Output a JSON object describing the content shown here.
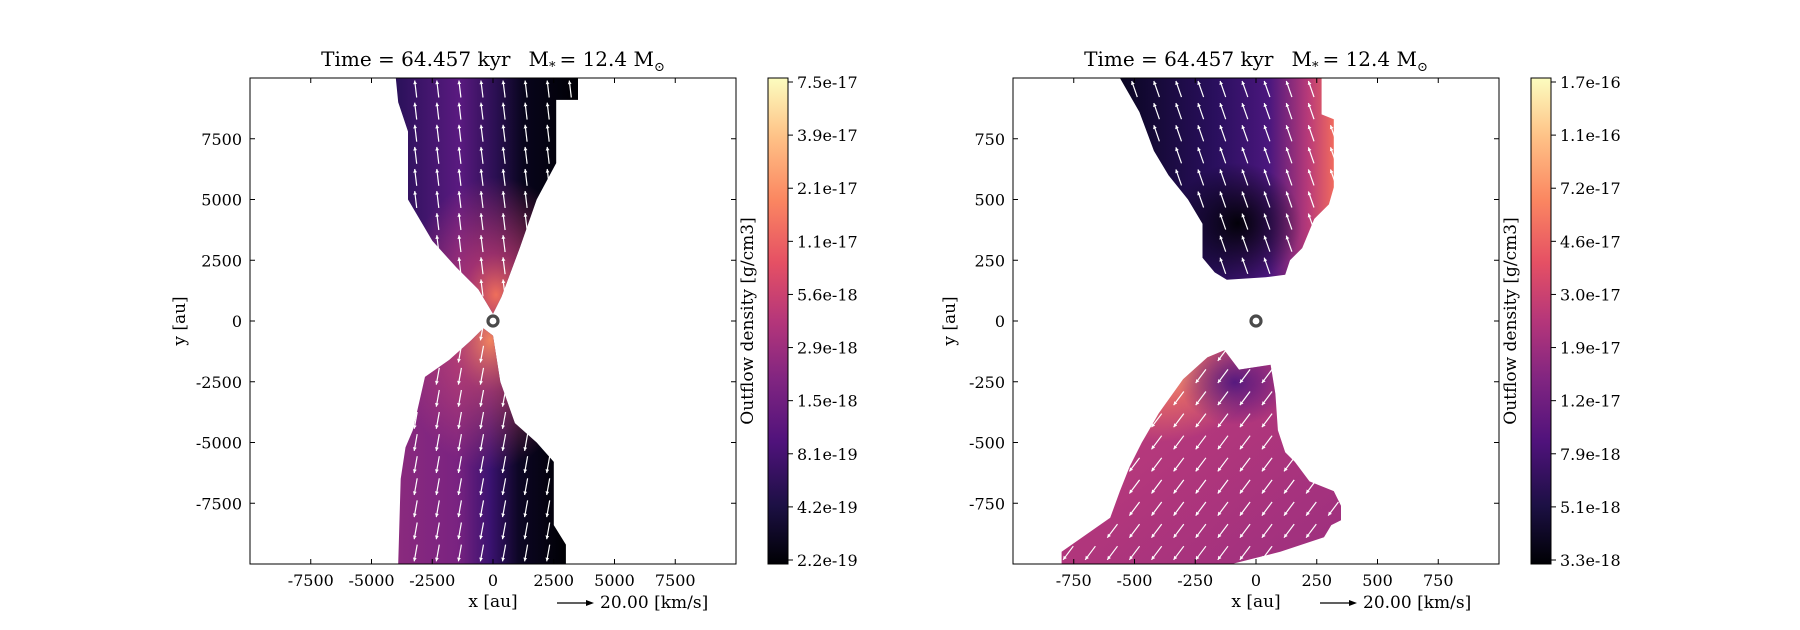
{
  "chart_data": [
    {
      "type": "heatmap",
      "title": "Time = 64.457 kyr    M_* = 12.4 M_⊙",
      "title_parts": {
        "time": "Time = 64.457 kyr",
        "mass_lhs": "M",
        "mass_sub": "*",
        "mass_rhs": "= 12.4 M",
        "mass_unit_sub": "⊙"
      },
      "xlabel": "x [au]",
      "ylabel": "y [au]",
      "xlim": [
        -10000,
        10000
      ],
      "ylim": [
        -10000,
        10000
      ],
      "x_ticks": [
        -7500,
        -5000,
        -2500,
        0,
        2500,
        5000,
        7500
      ],
      "x_tick_labels": [
        "-7500",
        "-5000",
        "-2500",
        "0",
        "2500",
        "5000",
        "7500"
      ],
      "y_ticks": [
        7500,
        5000,
        2500,
        0,
        -2500,
        -5000,
        -7500
      ],
      "y_tick_labels": [
        "7500",
        "5000",
        "2500",
        "0",
        "-2500",
        "-5000",
        "-7500"
      ],
      "colorbar": {
        "label": "Outflow density [g/cm3]",
        "scale": "log",
        "colormap": "magma",
        "tick_labels": [
          "7.5e-17",
          "3.9e-17",
          "2.1e-17",
          "1.1e-17",
          "5.6e-18",
          "2.9e-18",
          "1.5e-18",
          "8.1e-19",
          "4.2e-19",
          "2.2e-19"
        ]
      },
      "quiver_key": {
        "label": "20.00 [km/s]",
        "value": 20.0
      },
      "star_position": [
        0,
        0
      ],
      "outflow_lobes": {
        "north": [
          [
            -4000,
            10000
          ],
          [
            3500,
            10000
          ],
          [
            3500,
            9100
          ],
          [
            2600,
            9100
          ],
          [
            2600,
            6500
          ],
          [
            1800,
            5000
          ],
          [
            1100,
            3000
          ],
          [
            350,
            1000
          ],
          [
            0,
            300
          ],
          [
            -600,
            1300
          ],
          [
            -1500,
            2200
          ],
          [
            -2500,
            3300
          ],
          [
            -3500,
            5000
          ],
          [
            -3500,
            7800
          ],
          [
            -3900,
            9000
          ]
        ],
        "south": [
          [
            -3900,
            -10000
          ],
          [
            3000,
            -10000
          ],
          [
            3000,
            -9200
          ],
          [
            2500,
            -8400
          ],
          [
            2500,
            -5800
          ],
          [
            1800,
            -5000
          ],
          [
            900,
            -4200
          ],
          [
            300,
            -2500
          ],
          [
            0,
            -600
          ],
          [
            -400,
            -300
          ],
          [
            -900,
            -800
          ],
          [
            -1800,
            -1600
          ],
          [
            -2800,
            -2300
          ],
          [
            -3300,
            -4500
          ],
          [
            -3600,
            -5200
          ],
          [
            -3800,
            -6500
          ]
        ]
      }
    },
    {
      "type": "heatmap",
      "title": "Time = 64.457 kyr    M_* = 12.4 M_⊙",
      "title_parts": {
        "time": "Time = 64.457 kyr",
        "mass_lhs": "M",
        "mass_sub": "*",
        "mass_rhs": "= 12.4 M",
        "mass_unit_sub": "⊙"
      },
      "xlabel": "x [au]",
      "ylabel": "y [au]",
      "xlim": [
        -1000,
        1000
      ],
      "ylim": [
        -1000,
        1000
      ],
      "x_ticks": [
        -750,
        -500,
        -250,
        0,
        250,
        500,
        750
      ],
      "x_tick_labels": [
        "-750",
        "-500",
        "-250",
        "0",
        "250",
        "500",
        "750"
      ],
      "y_ticks": [
        750,
        500,
        250,
        0,
        -250,
        -500,
        -750
      ],
      "y_tick_labels": [
        "750",
        "500",
        "250",
        "0",
        "-250",
        "-500",
        "-750"
      ],
      "colorbar": {
        "label": "Outflow density [g/cm3]",
        "scale": "log",
        "colormap": "magma",
        "tick_labels": [
          "1.7e-16",
          "1.1e-16",
          "7.2e-17",
          "4.6e-17",
          "3.0e-17",
          "1.9e-17",
          "1.2e-17",
          "7.9e-18",
          "5.1e-18",
          "3.3e-18"
        ]
      },
      "quiver_key": {
        "label": "20.00 [km/s]",
        "value": 20.0
      },
      "star_position": [
        0,
        0
      ],
      "outflow_lobes": {
        "north": [
          [
            -560,
            1000
          ],
          [
            270,
            1000
          ],
          [
            270,
            850
          ],
          [
            320,
            830
          ],
          [
            320,
            550
          ],
          [
            300,
            480
          ],
          [
            240,
            420
          ],
          [
            190,
            300
          ],
          [
            140,
            250
          ],
          [
            120,
            190
          ],
          [
            40,
            180
          ],
          [
            -120,
            170
          ],
          [
            -170,
            200
          ],
          [
            -220,
            260
          ],
          [
            -220,
            400
          ],
          [
            -280,
            500
          ],
          [
            -360,
            600
          ],
          [
            -420,
            700
          ],
          [
            -480,
            860
          ]
        ],
        "south": [
          [
            -800,
            -1000
          ],
          [
            -800,
            -950
          ],
          [
            -700,
            -880
          ],
          [
            -600,
            -810
          ],
          [
            -560,
            -700
          ],
          [
            -520,
            -600
          ],
          [
            -470,
            -500
          ],
          [
            -400,
            -380
          ],
          [
            -300,
            -240
          ],
          [
            -200,
            -150
          ],
          [
            -130,
            -120
          ],
          [
            -70,
            -200
          ],
          [
            60,
            -180
          ],
          [
            80,
            -300
          ],
          [
            90,
            -450
          ],
          [
            120,
            -540
          ],
          [
            160,
            -580
          ],
          [
            220,
            -660
          ],
          [
            320,
            -700
          ],
          [
            350,
            -760
          ],
          [
            350,
            -820
          ],
          [
            310,
            -840
          ],
          [
            280,
            -890
          ],
          [
            100,
            -950
          ],
          [
            -100,
            -1000
          ]
        ]
      }
    }
  ]
}
